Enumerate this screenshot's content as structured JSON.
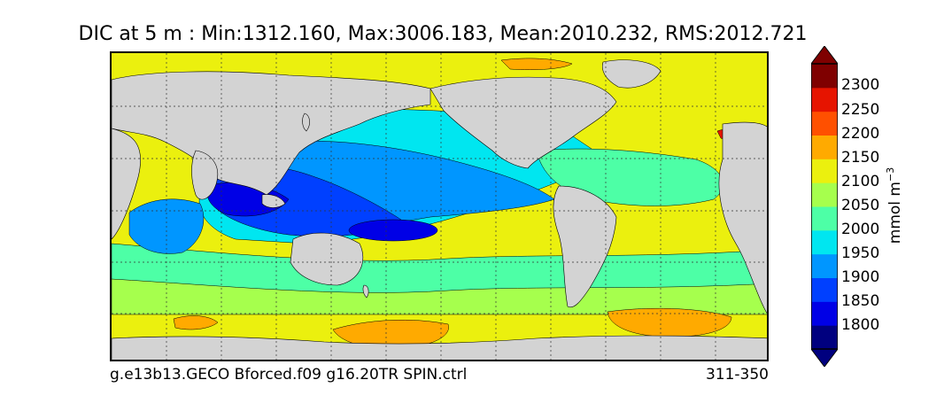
{
  "title": "DIC at 5 m : Min:1312.160, Max:3006.183, Mean:2010.232, RMS:2012.721",
  "footer": {
    "case_name": "g.e13b13.GECO Bforced.f09 g16.20TR SPIN.ctrl",
    "years": "311-350"
  },
  "colorbar": {
    "unit_main": "mmol m",
    "unit_exp": "−3",
    "ticks": [
      "2300",
      "2250",
      "2200",
      "2150",
      "2100",
      "2050",
      "2000",
      "1950",
      "1900",
      "1850",
      "1800"
    ],
    "colors": [
      "#00007f",
      "#0000e6",
      "#0040ff",
      "#0096ff",
      "#00e6f0",
      "#4dffa6",
      "#a6ff4d",
      "#ebf00e",
      "#ffaa00",
      "#ff5000",
      "#e61400",
      "#7f0000"
    ]
  },
  "map": {
    "land_color": "#d3d3d3",
    "gridline_style": "dotted"
  }
}
